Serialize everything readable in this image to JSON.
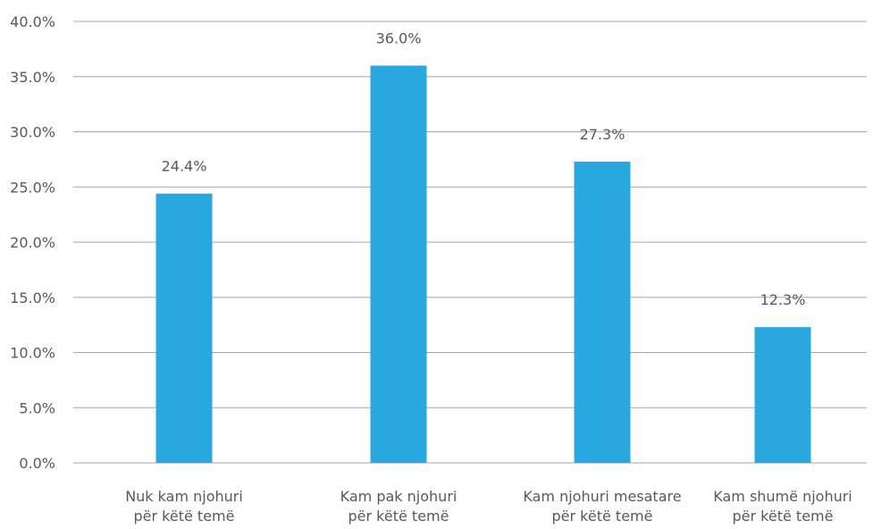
{
  "chart_data": {
    "type": "bar",
    "title": "",
    "xlabel": "",
    "ylabel": "",
    "categories": [
      [
        "Nuk kam njohuri",
        "për këtë temë"
      ],
      [
        "Kam pak njohuri",
        "për këtë temë"
      ],
      [
        "Kam njohuri mesatare",
        "për këtë temë"
      ],
      [
        "Kam shumë njohuri",
        "për këtë temë"
      ]
    ],
    "values": [
      24.4,
      36.0,
      27.3,
      12.3
    ],
    "data_labels": [
      "24.4%",
      "36.0%",
      "27.3%",
      "12.3%"
    ],
    "ylim": [
      0,
      40
    ],
    "yticks": [
      "0.0%",
      "5.0%",
      "10.0%",
      "15.0%",
      "20.0%",
      "25.0%",
      "30.0%",
      "35.0%",
      "40.0%"
    ],
    "grid": true,
    "legend": "none",
    "colors": {
      "bar": "#29a8e0",
      "grid": "#a6a6a6",
      "text": "#595959"
    }
  }
}
